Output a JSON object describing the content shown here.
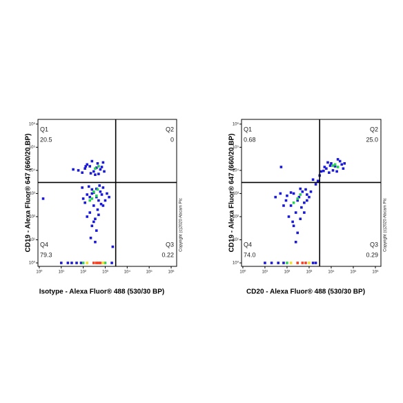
{
  "chart_data": [
    {
      "type": "scatter",
      "xlabel": "Isotype - Alexa Fluor® 488 (530/30 BP)",
      "ylabel": "CD19 - Alexa Fluor® 647 (660/20 BP)",
      "note": "Copyright (c)2020 Abcam Plc",
      "log_scale": true,
      "xlim": [
        0.87,
        1780000
      ],
      "ylim": [
        0.71,
        1600000
      ],
      "xticks": [
        {
          "value": 1,
          "label": "10⁰"
        },
        {
          "value": 10,
          "label": "10¹"
        },
        {
          "value": 100,
          "label": "10²"
        },
        {
          "value": 1000,
          "label": "10³"
        },
        {
          "value": 10000,
          "label": "10⁴"
        },
        {
          "value": 100000,
          "label": "10⁵"
        },
        {
          "value": 1000000,
          "label": "10⁶"
        }
      ],
      "yticks": [
        {
          "value": 1,
          "label": "10⁰"
        },
        {
          "value": 10,
          "label": "10¹"
        },
        {
          "value": 100,
          "label": "10²"
        },
        {
          "value": 1000,
          "label": "10³"
        },
        {
          "value": 10000,
          "label": "10⁴"
        },
        {
          "value": 100000,
          "label": "10⁵"
        },
        {
          "value": 1000000,
          "label": "10⁶"
        }
      ],
      "gate_x": 3000,
      "gate_y": 3000,
      "quadrants": {
        "names": [
          "Q1",
          "Q2",
          "Q3",
          "Q4"
        ],
        "values": [
          20.5,
          0,
          0.22,
          79.3
        ],
        "value_labels": [
          "20.5",
          "0",
          "0.22",
          "79.3"
        ]
      },
      "series": [
        {
          "color": "#1a1ad6",
          "x": [
            120,
            200,
            300,
            450,
            600,
            90,
            250,
            700,
            350,
            150,
            500,
            800,
            60,
            400,
            220,
            900,
            130,
            35,
            150,
            250,
            400,
            600,
            120,
            300,
            500,
            800,
            200,
            350,
            250,
            450,
            700,
            180,
            1200,
            100,
            300,
            550,
            400,
            220,
            300,
            150,
            650,
            1000,
            90,
            200,
            500,
            350,
            250,
            800,
            1500,
            400,
            1.5,
            2200,
            10,
            20,
            30,
            50,
            80,
            2000
          ],
          "y": [
            12000,
            15000,
            9000,
            20000,
            11000,
            8000,
            25000,
            14000,
            6500,
            18000,
            7000,
            22000,
            10000,
            13000,
            7500,
            9000,
            15000,
            11000,
            900,
            1500,
            700,
            1200,
            400,
            300,
            500,
            1800,
            150,
            80,
            40,
            200,
            900,
            2000,
            1000,
            600,
            1100,
            2200,
            25,
            12,
            60,
            100,
            350,
            500,
            1800,
            700,
            120,
            8,
            1000,
            300,
            700,
            1600,
            600,
            5,
            1,
            1,
            1,
            1,
            1,
            1
          ]
        },
        {
          "color": "#2ed158",
          "x": [
            300,
            400,
            250,
            500,
            350,
            200,
            450,
            100,
            1000
          ],
          "y": [
            1200,
            800,
            600,
            15000,
            12000,
            500,
            1500,
            1,
            1
          ]
        },
        {
          "color": "#ff3b1a",
          "x": [
            300,
            400,
            500,
            600
          ],
          "y": [
            1,
            1,
            1,
            1
          ]
        },
        {
          "color": "#f0e020",
          "x": [
            150,
            800
          ],
          "y": [
            1,
            1
          ]
        }
      ]
    },
    {
      "type": "scatter",
      "xlabel": "CD20 - Alexa Fluor® 488 (530/30 BP)",
      "ylabel": "CD19 - Alexa Fluor® 647 (660/20 BP)",
      "note": "Copyright (c)2020 Abcam Plc",
      "log_scale": true,
      "xlim": [
        0.87,
        1780000
      ],
      "ylim": [
        0.71,
        1600000
      ],
      "xticks": [
        {
          "value": 1,
          "label": "10⁰"
        },
        {
          "value": 10,
          "label": "10¹"
        },
        {
          "value": 100,
          "label": "10²"
        },
        {
          "value": 1000,
          "label": "10³"
        },
        {
          "value": 10000,
          "label": "10⁴"
        },
        {
          "value": 100000,
          "label": "10⁵"
        },
        {
          "value": 1000000,
          "label": "10⁶"
        }
      ],
      "yticks": [
        {
          "value": 1,
          "label": "10⁰"
        },
        {
          "value": 10,
          "label": "10¹"
        },
        {
          "value": 100,
          "label": "10²"
        },
        {
          "value": 1000,
          "label": "10³"
        },
        {
          "value": 10000,
          "label": "10⁴"
        },
        {
          "value": 100000,
          "label": "10⁵"
        },
        {
          "value": 1000000,
          "label": "10⁶"
        }
      ],
      "gate_x": 3000,
      "gate_y": 3000,
      "quadrants": {
        "names": [
          "Q1",
          "Q2",
          "Q3",
          "Q4"
        ],
        "values": [
          0.68,
          25,
          0.29,
          74
        ],
        "value_labels": [
          "0.68",
          "25.0",
          "0.29",
          "74.0"
        ]
      },
      "series": [
        {
          "color": "#1a1ad6",
          "x": [
            6000,
            10000,
            15000,
            25000,
            8000,
            30000,
            5000,
            12000,
            20000,
            40000,
            7000,
            18000,
            35000,
            9000,
            4500,
            2500,
            3000,
            1500,
            2000,
            3500,
            100,
            200,
            300,
            500,
            800,
            150,
            250,
            400,
            600,
            1000,
            50,
            70,
            120,
            200,
            300,
            250,
            180,
            450,
            700,
            1200,
            350,
            90,
            150,
            600,
            400,
            30,
            800,
            54,
            10,
            20,
            40,
            70,
            1500,
            2000
          ],
          "y": [
            12000,
            20000,
            15000,
            25000,
            8000,
            18000,
            14000,
            10000,
            30000,
            20000,
            22000,
            9000,
            12000,
            16000,
            9500,
            3500,
            6000,
            4000,
            2500,
            9000,
            800,
            1000,
            500,
            1200,
            900,
            300,
            150,
            80,
            400,
            700,
            1000,
            300,
            100,
            40,
            20,
            8,
            60,
            250,
            1500,
            1200,
            700,
            500,
            1100,
            150,
            1600,
            700,
            500,
            14000,
            1,
            1,
            1,
            1,
            1,
            1
          ]
        },
        {
          "color": "#2ed158",
          "x": [
            15000,
            20000,
            12000,
            300,
            400,
            200,
            100
          ],
          "y": [
            18000,
            14000,
            16000,
            600,
            900,
            400,
            1
          ]
        },
        {
          "color": "#ff3b1a",
          "x": [
            300,
            500,
            700
          ],
          "y": [
            1,
            1,
            1
          ]
        },
        {
          "color": "#f0e020",
          "x": [
            150,
            1000
          ],
          "y": [
            1,
            1
          ]
        }
      ]
    }
  ]
}
